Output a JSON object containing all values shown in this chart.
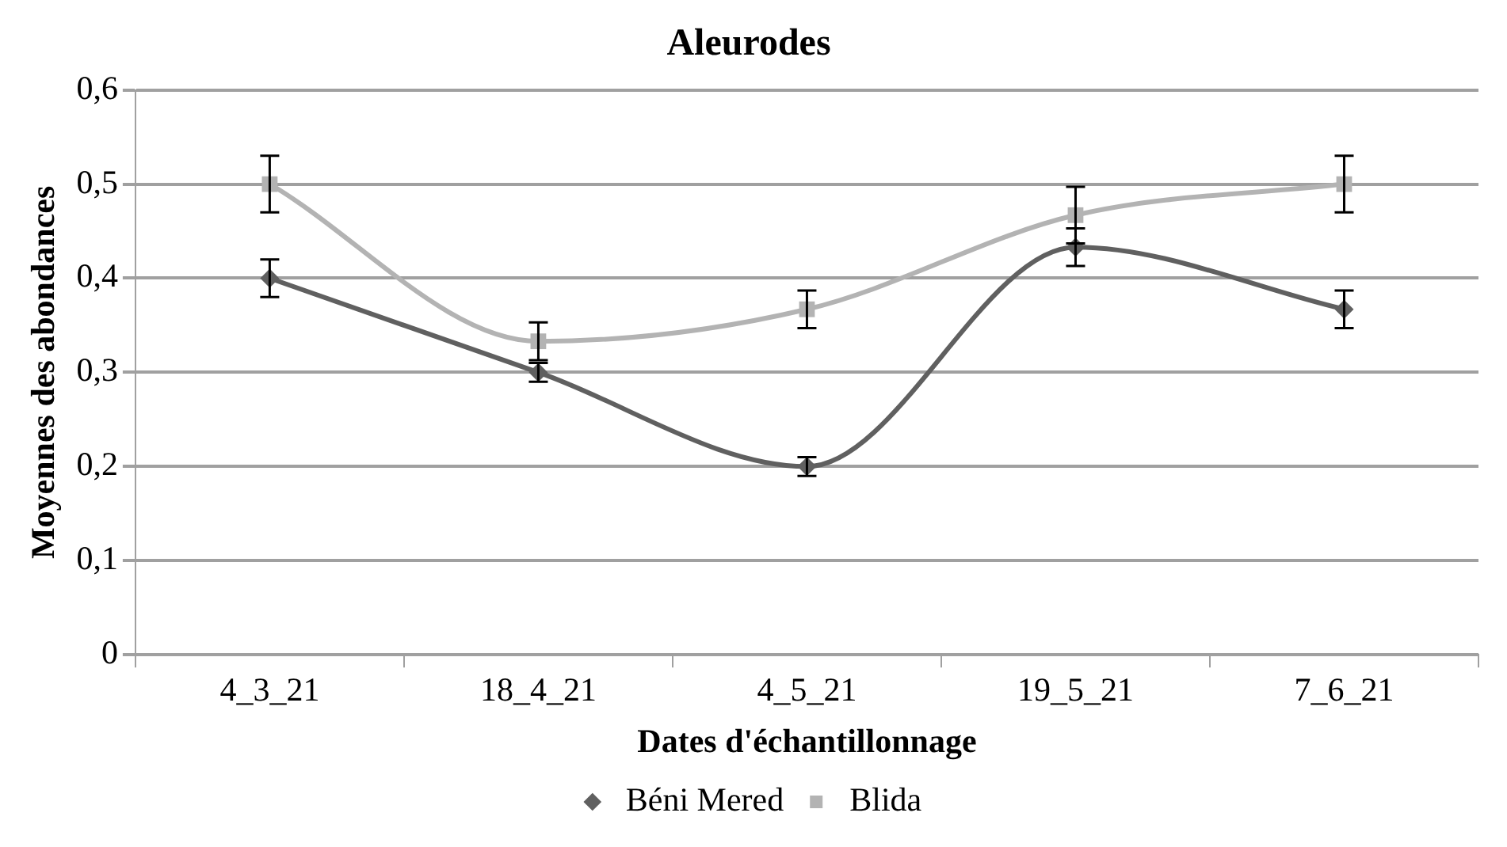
{
  "chart_data": {
    "type": "line",
    "title": "Aleurodes",
    "xlabel": "Dates d'échantillonnage",
    "ylabel": "Moyennes des abondances",
    "categories": [
      "4_3_21",
      "18_4_21",
      "4_5_21",
      "19_5_21",
      "7_6_21"
    ],
    "series": [
      {
        "name": "Béni Mered",
        "color": "#606060",
        "marker": "diamond",
        "values": [
          0.4,
          0.3,
          0.2,
          0.433,
          0.367
        ],
        "errors": [
          0.02,
          0.01,
          0.01,
          0.02,
          0.02
        ]
      },
      {
        "name": "Blida",
        "color": "#b3b3b3",
        "marker": "square",
        "values": [
          0.5,
          0.333,
          0.367,
          0.467,
          0.5
        ],
        "errors": [
          0.03,
          0.02,
          0.02,
          0.03,
          0.03
        ]
      }
    ],
    "ylim": [
      0,
      0.6
    ],
    "yticks": [
      {
        "value": 0,
        "label": "0"
      },
      {
        "value": 0.1,
        "label": "0,1"
      },
      {
        "value": 0.2,
        "label": "0,2"
      },
      {
        "value": 0.3,
        "label": "0,3"
      },
      {
        "value": 0.4,
        "label": "0,4"
      },
      {
        "value": 0.5,
        "label": "0,5"
      },
      {
        "value": 0.6,
        "label": "0,6"
      }
    ],
    "grid": "y",
    "legend": "bottom"
  }
}
